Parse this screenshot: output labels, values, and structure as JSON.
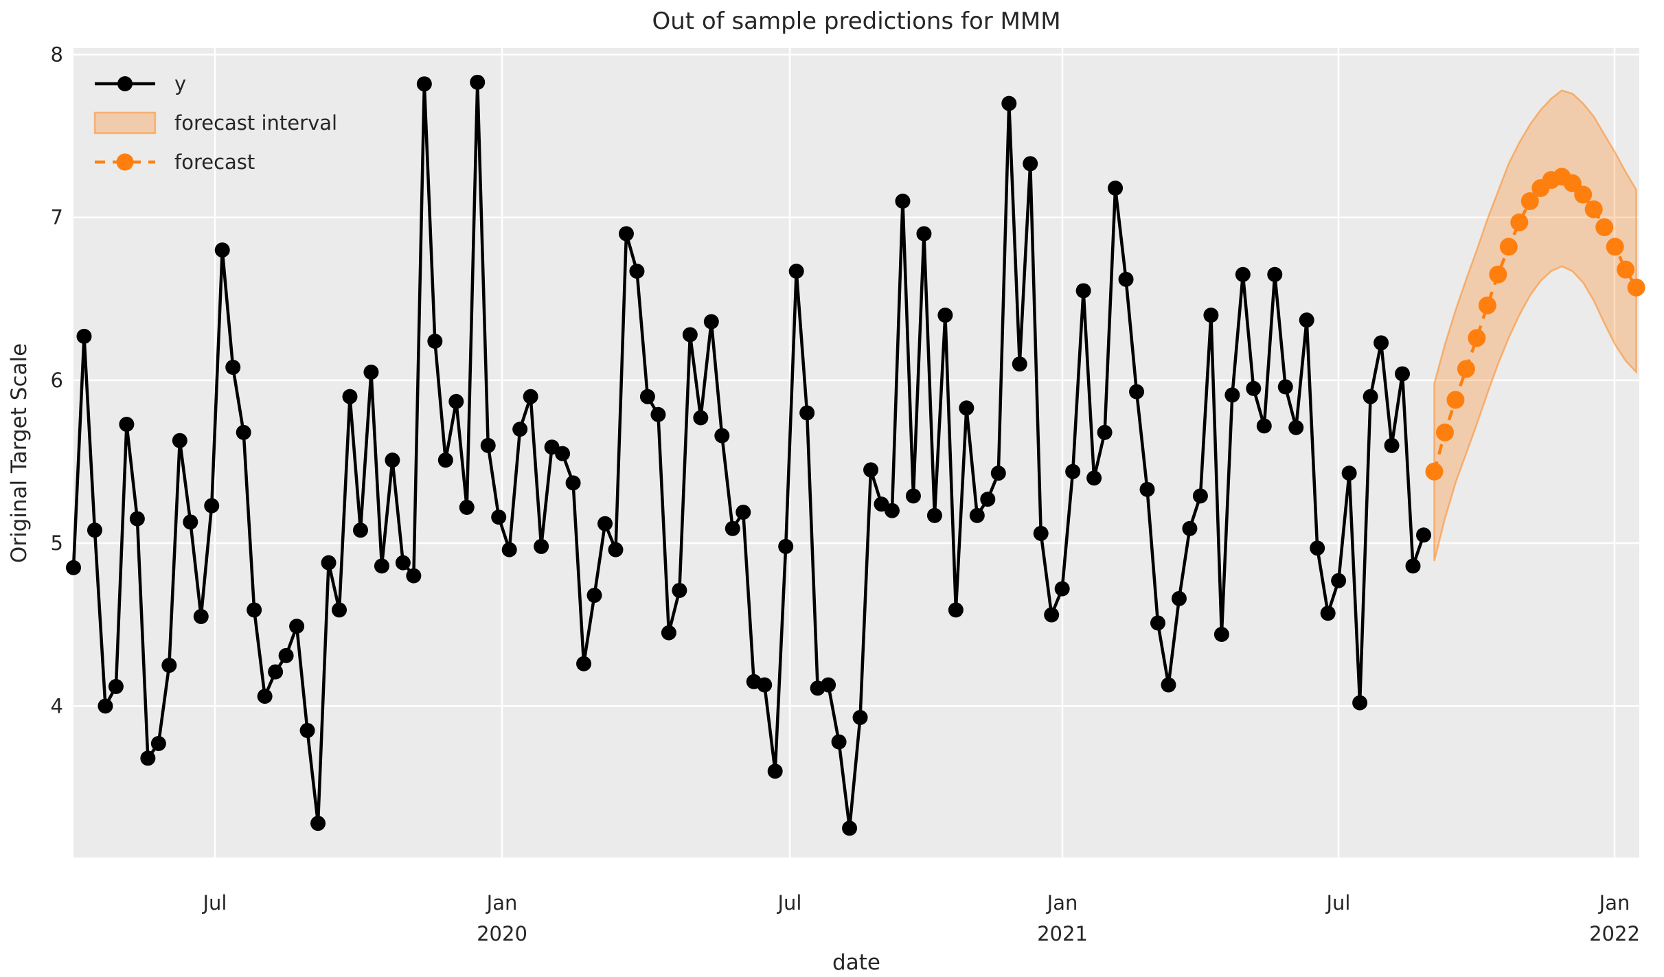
{
  "title": "Out of sample predictions for MMM",
  "axes": {
    "xlabel": "date",
    "ylabel": "Original Target Scale",
    "yticks": [
      "8",
      "7",
      "6",
      "5",
      "4"
    ],
    "xticks": [
      {
        "line1": "Jul",
        "line2": ""
      },
      {
        "line1": "Jan",
        "line2": "2020"
      },
      {
        "line1": "Jul",
        "line2": ""
      },
      {
        "line1": "Jan",
        "line2": "2021"
      },
      {
        "line1": "Jul",
        "line2": ""
      },
      {
        "line1": "Jan",
        "line2": "2022"
      }
    ]
  },
  "legend": {
    "y_label": "y",
    "interval_label": "forecast interval",
    "forecast_label": "forecast"
  },
  "colors": {
    "series": "#000000",
    "forecast": "#ff7f0e",
    "band_fill": "#ff7f0e",
    "band_fill_opacity": 0.28,
    "band_edge": "#ff7f0e",
    "band_edge_opacity": 0.5,
    "axes_bg": "#ebebeb",
    "grid": "#ffffff",
    "text": "#262626"
  },
  "chart_data": {
    "type": "line",
    "title": "Out of sample predictions for MMM",
    "xlabel": "date",
    "ylabel": "Original Target Scale",
    "ylim": [
      3.07,
      8.04
    ],
    "yticks": [
      8,
      7,
      6,
      5,
      4
    ],
    "xtick_labels": [
      "Jul 2019",
      "Jan 2020",
      "Jul 2020",
      "Jan 2021",
      "Jul 2021",
      "Jan 2022"
    ],
    "grid": true,
    "legend_position": "upper left",
    "frequency": "weekly",
    "y_start_date": "2019-03-24",
    "forecast_start_date": "2021-09-05",
    "series": [
      {
        "name": "y",
        "style": "solid-with-markers",
        "values": [
          4.85,
          6.27,
          5.08,
          4.0,
          4.12,
          5.73,
          5.15,
          3.68,
          3.77,
          4.25,
          5.63,
          5.13,
          4.55,
          5.23,
          6.8,
          6.08,
          5.68,
          4.59,
          4.06,
          4.21,
          4.31,
          4.49,
          3.85,
          3.28,
          4.88,
          4.59,
          5.9,
          5.08,
          6.05,
          4.86,
          5.51,
          4.88,
          4.8,
          7.82,
          6.24,
          5.51,
          5.87,
          5.22,
          7.83,
          5.6,
          5.16,
          4.96,
          5.7,
          5.9,
          4.98,
          5.59,
          5.55,
          5.37,
          4.26,
          4.68,
          5.12,
          4.96,
          6.9,
          6.67,
          5.9,
          5.79,
          4.45,
          4.71,
          6.28,
          5.77,
          6.36,
          5.66,
          5.09,
          5.19,
          4.15,
          4.13,
          3.6,
          4.98,
          6.67,
          5.8,
          4.11,
          4.13,
          3.78,
          3.25,
          3.93,
          5.45,
          5.24,
          5.2,
          7.1,
          5.29,
          6.9,
          5.17,
          6.4,
          4.59,
          5.83,
          5.17,
          5.27,
          5.43,
          7.7,
          6.1,
          7.33,
          5.06,
          4.56,
          4.72,
          5.44,
          6.55,
          5.4,
          5.68,
          7.18,
          6.62,
          5.93,
          5.33,
          4.51,
          4.13,
          4.66,
          5.09,
          5.29,
          6.4,
          4.44,
          5.91,
          6.65,
          5.95,
          5.72,
          6.65,
          5.96,
          5.71,
          6.37,
          4.97,
          4.57,
          4.77,
          5.43,
          4.02,
          5.9,
          6.23,
          5.6,
          6.04,
          4.86,
          5.05
        ]
      },
      {
        "name": "forecast",
        "style": "dashed-with-markers",
        "values": [
          5.44,
          5.68,
          5.88,
          6.07,
          6.26,
          6.46,
          6.65,
          6.82,
          6.97,
          7.1,
          7.18,
          7.23,
          7.25,
          7.21,
          7.14,
          7.05,
          6.94,
          6.82,
          6.68,
          6.57
        ]
      }
    ],
    "band": {
      "name": "forecast interval",
      "upper": [
        5.98,
        6.22,
        6.43,
        6.62,
        6.8,
        6.99,
        7.16,
        7.33,
        7.46,
        7.57,
        7.66,
        7.73,
        7.78,
        7.76,
        7.7,
        7.62,
        7.51,
        7.4,
        7.28,
        7.17
      ],
      "lower": [
        4.89,
        5.15,
        5.37,
        5.55,
        5.73,
        5.92,
        6.1,
        6.26,
        6.4,
        6.52,
        6.61,
        6.67,
        6.7,
        6.67,
        6.6,
        6.49,
        6.35,
        6.22,
        6.12,
        6.05
      ]
    }
  }
}
